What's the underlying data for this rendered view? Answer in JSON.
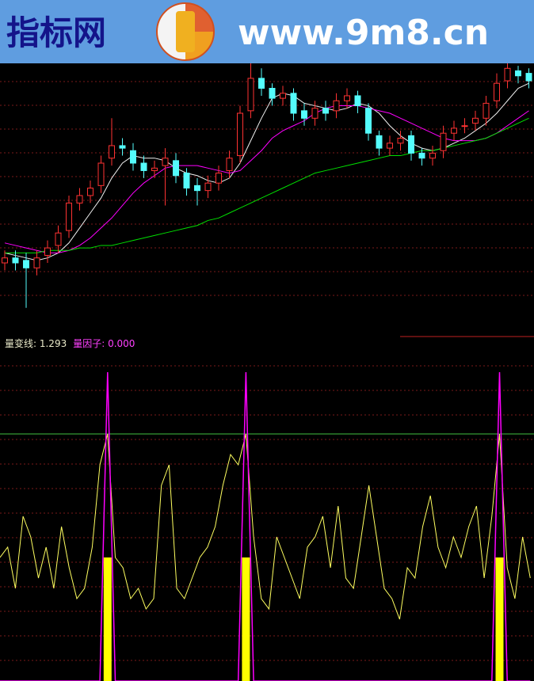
{
  "header": {
    "site_name": "指标网",
    "url": "www.9m8.cn"
  },
  "price_panel": {
    "ylim": [
      0,
      100
    ],
    "up_color": "#ff3232",
    "down_color": "#54fcfc",
    "open": [
      20,
      22,
      21,
      18,
      23,
      27,
      33,
      44,
      47,
      51,
      62,
      67,
      65,
      60,
      57,
      59,
      61,
      56,
      51,
      49,
      52,
      57,
      63,
      81,
      94,
      90,
      86,
      88,
      81,
      78,
      82,
      81,
      85,
      87,
      82,
      71,
      66,
      68,
      71,
      64,
      62,
      65,
      72,
      75,
      76,
      78,
      85,
      93,
      97,
      96
    ],
    "high": [
      25,
      25,
      24,
      25,
      29,
      35,
      47,
      50,
      53,
      63,
      78,
      70,
      68,
      63,
      61,
      66,
      64,
      58,
      54,
      55,
      59,
      65,
      83,
      100,
      98,
      92,
      91,
      90,
      84,
      85,
      85,
      88,
      90,
      89,
      84,
      73,
      71,
      73,
      73,
      66,
      67,
      75,
      77,
      78,
      81,
      87,
      96,
      101,
      99,
      98
    ],
    "low": [
      17,
      17,
      2,
      15,
      20,
      24,
      30,
      41,
      44,
      48,
      59,
      63,
      57,
      54,
      54,
      43,
      52,
      47,
      43,
      46,
      49,
      54,
      60,
      78,
      87,
      83,
      83,
      77,
      75,
      75,
      77,
      78,
      82,
      80,
      69,
      63,
      63,
      65,
      61,
      59,
      59,
      62,
      69,
      72,
      73,
      75,
      82,
      90,
      92,
      90
    ],
    "close": [
      22,
      20,
      18,
      22,
      26,
      32,
      44,
      47,
      50,
      60,
      67,
      66,
      60,
      57,
      58,
      62,
      55,
      50,
      49,
      52,
      56,
      62,
      80,
      94,
      90,
      86,
      88,
      80,
      78,
      82,
      80,
      85,
      87,
      83,
      72,
      66,
      68,
      70,
      64,
      62,
      64,
      72,
      74,
      75,
      78,
      84,
      92,
      98,
      95,
      93
    ],
    "ma_lines": [
      {
        "color": "#f0f0f0",
        "values": [
          24,
          23,
          22,
          21,
          22,
          24,
          28,
          34,
          40,
          46,
          54,
          60,
          63,
          62,
          62,
          61,
          58,
          56,
          55,
          53,
          52,
          54,
          60,
          69,
          78,
          86,
          88,
          87,
          84,
          83,
          82,
          81,
          82,
          84,
          83,
          80,
          75,
          71,
          68,
          66,
          65,
          66,
          68,
          70,
          73,
          76,
          80,
          85,
          90,
          92
        ]
      },
      {
        "color": "#ff00ff",
        "values": [
          28,
          27,
          26,
          25,
          24,
          24,
          25,
          27,
          30,
          34,
          38,
          43,
          48,
          52,
          55,
          58,
          59,
          59,
          59,
          58,
          57,
          56,
          57,
          61,
          65,
          70,
          73,
          75,
          77,
          80,
          82,
          83,
          83,
          83,
          82,
          81,
          80,
          78,
          76,
          74,
          72,
          70,
          69,
          69,
          69,
          70,
          72,
          75,
          78,
          81
        ]
      },
      {
        "color": "#00e000",
        "values": [
          24,
          24,
          24,
          24,
          25,
          25,
          25,
          26,
          26,
          27,
          27,
          28,
          29,
          30,
          31,
          32,
          33,
          34,
          35,
          37,
          38,
          40,
          42,
          44,
          46,
          48,
          50,
          52,
          54,
          56,
          57,
          58,
          59,
          60,
          61,
          62,
          63,
          63,
          64,
          65,
          65,
          66,
          67,
          68,
          69,
          70,
          72,
          74,
          76,
          78
        ]
      }
    ]
  },
  "indicator_panel": {
    "labels": [
      {
        "text": "量变线: 1.293",
        "color": "#e8e8c8"
      },
      {
        "text": "量因子: 0.000",
        "color": "#ff40ff"
      }
    ],
    "ylim": [
      0,
      3.1
    ],
    "level": 2.4,
    "level_color": "#40c040",
    "line": {
      "color": "#ffff60",
      "values": [
        1.2,
        1.3,
        0.9,
        1.6,
        1.4,
        1.0,
        1.3,
        0.9,
        1.5,
        1.1,
        0.8,
        0.9,
        1.3,
        2.1,
        2.4,
        1.2,
        1.1,
        0.8,
        0.9,
        0.7,
        0.8,
        1.9,
        2.1,
        0.9,
        0.8,
        1.0,
        1.2,
        1.3,
        1.5,
        1.9,
        2.2,
        2.1,
        2.4,
        1.4,
        0.8,
        0.7,
        1.4,
        1.2,
        1.0,
        0.8,
        1.3,
        1.4,
        1.6,
        1.1,
        1.7,
        1.0,
        0.9,
        1.4,
        1.9,
        1.4,
        0.9,
        0.8,
        0.6,
        1.1,
        1.0,
        1.5,
        1.8,
        1.3,
        1.1,
        1.4,
        1.2,
        1.5,
        1.7,
        1.0,
        1.6,
        2.4,
        1.1,
        0.8,
        1.4,
        1.0
      ]
    },
    "spikes": {
      "color": "#ff00ff",
      "values": [
        0,
        0,
        0,
        0,
        0,
        0,
        0,
        0,
        0,
        0,
        0,
        0,
        0,
        0,
        3.0,
        0,
        0,
        0,
        0,
        0,
        0,
        0,
        0,
        0,
        0,
        0,
        0,
        0,
        0,
        0,
        0,
        0,
        3.0,
        0,
        0,
        0,
        0,
        0,
        0,
        0,
        0,
        0,
        0,
        0,
        0,
        0,
        0,
        0,
        0,
        0,
        0,
        0,
        0,
        0,
        0,
        0,
        0,
        0,
        0,
        0,
        0,
        0,
        0,
        0,
        0,
        3.0,
        0,
        0,
        0,
        0
      ]
    },
    "bars": {
      "color": "#ffff00",
      "values": [
        0,
        0,
        0,
        0,
        0,
        0,
        0,
        0,
        0,
        0,
        0,
        0,
        0,
        0,
        1.2,
        0,
        0,
        0,
        0,
        0,
        0,
        0,
        0,
        0,
        0,
        0,
        0,
        0,
        0,
        0,
        0,
        0,
        1.2,
        0,
        0,
        0,
        0,
        0,
        0,
        0,
        0,
        0,
        0,
        0,
        0,
        0,
        0,
        0,
        0,
        0,
        0,
        0,
        0,
        0,
        0,
        0,
        0,
        0,
        0,
        0,
        0,
        0,
        0,
        0,
        0,
        1.2,
        0,
        0,
        0,
        0
      ]
    }
  }
}
